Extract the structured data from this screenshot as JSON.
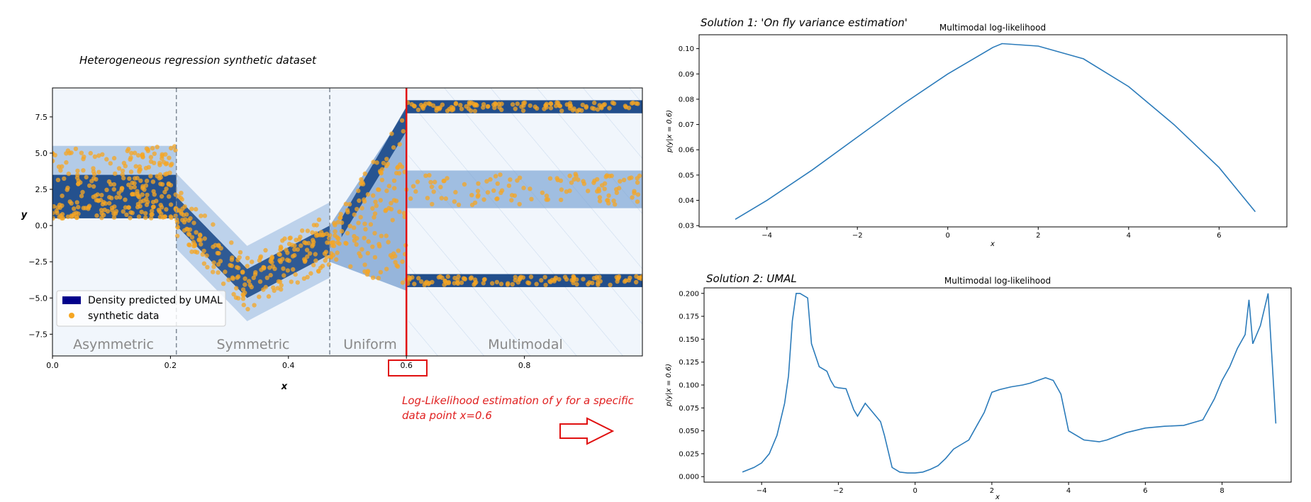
{
  "left": {
    "caption": "Heterogeneous regression synthetic dataset",
    "xlabel": "x",
    "ylabel": "y",
    "xticks": [
      "0.0",
      "0.2",
      "0.4",
      "0.6",
      "0.8"
    ],
    "yticks": [
      "7.5",
      "5.0",
      "2.5",
      "0.0",
      "−2.5",
      "−5.0",
      "−7.5"
    ],
    "regions": [
      "Asymmetric",
      "Symmetric",
      "Uniform",
      "Multimodal"
    ],
    "legend": [
      "Density predicted by UMAL",
      "synthetic data"
    ],
    "highlight_x": "0.6",
    "note": "Log-Likelihood estimation of y for a specific data point x=0.6",
    "colors": {
      "density": "#0b3c7e",
      "points": "#f5a623",
      "marker": "#e01010"
    }
  },
  "top": {
    "caption": "Solution 1: 'On fly variance estimation'",
    "title": "Multimodal log-likelihood",
    "xlabel": "x",
    "ylabel": "p(y|x = 0.6)",
    "xticks": [
      "−4",
      "−2",
      "0",
      "2",
      "4",
      "6"
    ],
    "yticks": [
      "0.10",
      "0.09",
      "0.08",
      "0.07",
      "0.06",
      "0.05",
      "0.04",
      "0.03"
    ]
  },
  "bottom": {
    "caption": "Solution 2: UMAL",
    "title": "Multimodal log-likelihood",
    "xlabel": "x",
    "ylabel": "p(y|x = 0.6)",
    "xticks": [
      "−4",
      "−2",
      "0",
      "2",
      "4",
      "6",
      "8"
    ],
    "yticks": [
      "0.200",
      "0.175",
      "0.150",
      "0.125",
      "0.100",
      "0.075",
      "0.050",
      "0.025",
      "0.000"
    ]
  },
  "chart_data": [
    {
      "type": "scatter",
      "title": "",
      "xlabel": "x",
      "ylabel": "y",
      "xlim": [
        0.0,
        1.0
      ],
      "ylim": [
        -9,
        9.5
      ],
      "vlines_dashed": [
        0.21,
        0.47
      ],
      "vline_highlight": 0.6,
      "series": [
        {
          "name": "Density predicted by UMAL",
          "kind": "density"
        },
        {
          "name": "synthetic data",
          "kind": "points",
          "regions": [
            {
              "label": "Asymmetric",
              "x_range": [
                0.0,
                0.21
              ],
              "y_range": [
                0.5,
                5.5
              ]
            },
            {
              "label": "Symmetric",
              "x_range": [
                0.21,
                0.47
              ],
              "y_center_path": [
                [
                  0.21,
                  1.0
                ],
                [
                  0.33,
                  -4.0
                ],
                [
                  0.47,
                  -1.0
                ]
              ]
            },
            {
              "label": "Uniform",
              "x_range": [
                0.47,
                0.6
              ],
              "y_range_start": [
                -2.5,
                0.0
              ],
              "y_range_end": [
                -4.5,
                8.0
              ]
            },
            {
              "label": "Multimodal",
              "x_range": [
                0.6,
                1.0
              ],
              "modes": [
                8.2,
                2.5,
                -3.8
              ]
            }
          ]
        }
      ]
    },
    {
      "type": "line",
      "title": "Multimodal log-likelihood",
      "xlabel": "x",
      "ylabel": "p(y|x = 0.6)",
      "xlim": [
        -5.5,
        7.5
      ],
      "ylim": [
        0.0295,
        0.1055
      ],
      "x": [
        -4.7,
        -4.0,
        -3.0,
        -2.0,
        -1.0,
        0.0,
        1.0,
        1.2,
        2.0,
        3.0,
        4.0,
        5.0,
        6.0,
        6.8
      ],
      "y": [
        0.0325,
        0.04,
        0.052,
        0.065,
        0.078,
        0.09,
        0.1005,
        0.102,
        0.101,
        0.096,
        0.085,
        0.07,
        0.053,
        0.0355
      ]
    },
    {
      "type": "line",
      "title": "Multimodal log-likelihood",
      "xlabel": "x",
      "ylabel": "p(y|x = 0.6)",
      "xlim": [
        -5.5,
        9.8
      ],
      "ylim": [
        -0.006,
        0.206
      ],
      "x": [
        -4.5,
        -4.2,
        -4.0,
        -3.8,
        -3.6,
        -3.4,
        -3.3,
        -3.2,
        -3.1,
        -3.0,
        -2.8,
        -2.7,
        -2.5,
        -2.3,
        -2.2,
        -2.1,
        -2.0,
        -1.8,
        -1.6,
        -1.5,
        -1.3,
        -1.1,
        -0.9,
        -0.8,
        -0.6,
        -0.4,
        -0.2,
        0.0,
        0.2,
        0.4,
        0.6,
        0.8,
        1.0,
        1.2,
        1.4,
        1.6,
        1.8,
        2.0,
        2.2,
        2.5,
        2.8,
        3.0,
        3.2,
        3.4,
        3.6,
        3.8,
        4.0,
        4.4,
        4.8,
        5.0,
        5.5,
        6.0,
        6.5,
        7.0,
        7.5,
        7.8,
        8.0,
        8.2,
        8.4,
        8.6,
        8.7,
        8.8,
        9.0,
        9.2,
        9.4
      ],
      "y": [
        0.005,
        0.01,
        0.015,
        0.025,
        0.045,
        0.08,
        0.11,
        0.17,
        0.2,
        0.2,
        0.195,
        0.145,
        0.12,
        0.115,
        0.105,
        0.098,
        0.097,
        0.096,
        0.073,
        0.066,
        0.08,
        0.07,
        0.06,
        0.045,
        0.01,
        0.005,
        0.004,
        0.004,
        0.005,
        0.008,
        0.012,
        0.02,
        0.03,
        0.035,
        0.04,
        0.055,
        0.07,
        0.092,
        0.095,
        0.098,
        0.1,
        0.102,
        0.105,
        0.108,
        0.105,
        0.09,
        0.05,
        0.04,
        0.038,
        0.04,
        0.048,
        0.053,
        0.055,
        0.056,
        0.062,
        0.085,
        0.105,
        0.12,
        0.14,
        0.155,
        0.193,
        0.145,
        0.165,
        0.2,
        0.058
      ]
    }
  ]
}
